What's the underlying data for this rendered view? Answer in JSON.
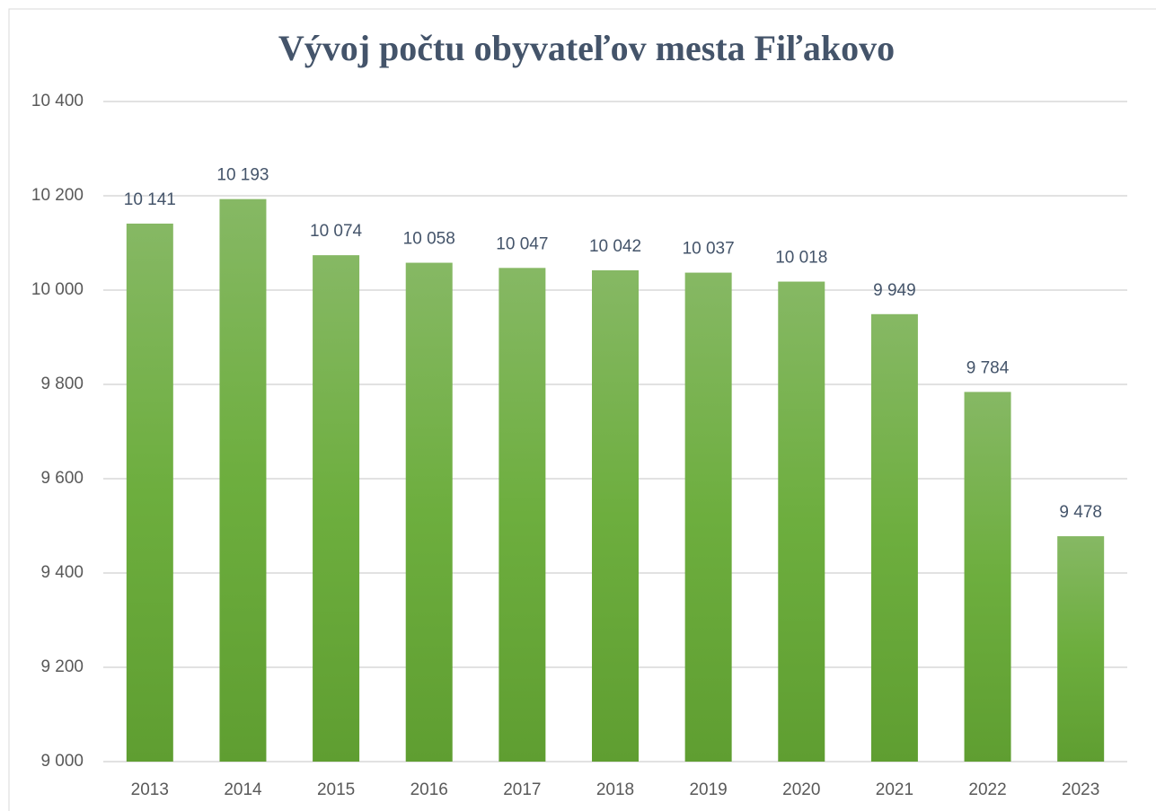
{
  "chart_data": {
    "type": "bar",
    "title": "Vývoj počtu obyvateľov mesta Fiľakovo",
    "categories": [
      "2013",
      "2014",
      "2015",
      "2016",
      "2017",
      "2018",
      "2019",
      "2020",
      "2021",
      "2022",
      "2023"
    ],
    "values": [
      10141,
      10193,
      10074,
      10058,
      10047,
      10042,
      10037,
      10018,
      9949,
      9784,
      9478
    ],
    "value_labels": [
      "10 141",
      "10 193",
      "10 074",
      "10 058",
      "10 047",
      "10 042",
      "10 037",
      "10 018",
      "9 949",
      "9 784",
      "9 478"
    ],
    "color": "#70ad47",
    "ylim": [
      9000,
      10400
    ],
    "yticks": [
      {
        "value": 9000,
        "label": "9 000"
      },
      {
        "value": 9200,
        "label": "9 200"
      },
      {
        "value": 9400,
        "label": "9 400"
      },
      {
        "value": 9600,
        "label": "9 600"
      },
      {
        "value": 9800,
        "label": "9 800"
      },
      {
        "value": 10000,
        "label": "10 000"
      },
      {
        "value": 10200,
        "label": "10 200"
      },
      {
        "value": 10400,
        "label": "10 400"
      }
    ],
    "grid": true
  }
}
